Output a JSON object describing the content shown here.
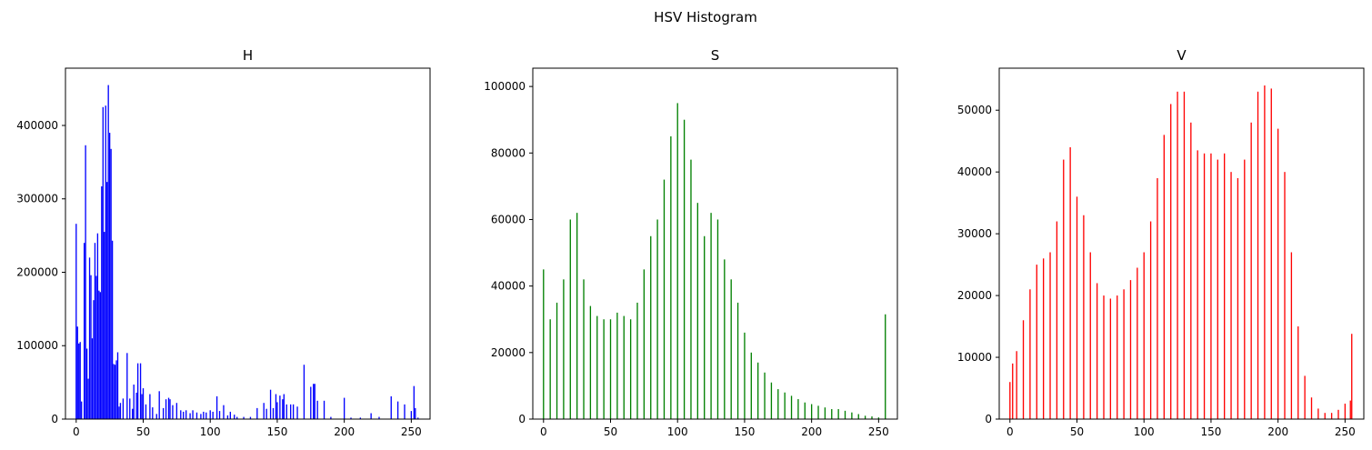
{
  "figure": {
    "title": "HSV Histogram"
  },
  "chart_data": [
    {
      "type": "bar",
      "title": "H",
      "color": "#0000ff",
      "xlim": [
        -8,
        264
      ],
      "ylim": [
        0,
        478000
      ],
      "xticks": [
        0,
        50,
        100,
        150,
        200,
        250
      ],
      "yticks": [
        0,
        100000,
        200000,
        300000,
        400000
      ],
      "x": [
        0,
        1,
        2,
        3,
        4,
        6,
        7,
        8,
        9,
        10,
        11,
        12,
        13,
        14,
        15,
        16,
        17,
        18,
        19,
        20,
        21,
        22,
        23,
        24,
        25,
        26,
        27,
        28,
        29,
        30,
        31,
        32,
        33,
        35,
        38,
        40,
        42,
        43,
        45,
        46,
        48,
        49,
        50,
        52,
        55,
        57,
        60,
        62,
        65,
        67,
        69,
        70,
        72,
        75,
        78,
        80,
        82,
        85,
        87,
        90,
        93,
        95,
        97,
        100,
        102,
        105,
        107,
        110,
        113,
        115,
        118,
        120,
        125,
        130,
        135,
        140,
        142,
        145,
        147,
        149,
        150,
        152,
        154,
        155,
        157,
        160,
        162,
        165,
        170,
        175,
        177,
        178,
        180,
        185,
        190,
        200,
        205,
        212,
        220,
        226,
        235,
        240,
        245,
        250,
        252,
        253,
        255
      ],
      "values": [
        266000,
        126000,
        103000,
        105000,
        24000,
        240000,
        373000,
        96000,
        55000,
        220000,
        196000,
        110000,
        162000,
        240000,
        195000,
        253000,
        175000,
        173000,
        317000,
        425000,
        255000,
        427000,
        323000,
        455000,
        390000,
        368000,
        243000,
        75000,
        74000,
        80000,
        91000,
        17000,
        22000,
        28000,
        90000,
        28000,
        14000,
        47000,
        36000,
        76000,
        76000,
        34000,
        42000,
        20000,
        34000,
        16000,
        7000,
        38000,
        15000,
        27000,
        29000,
        27000,
        19000,
        22000,
        12000,
        10000,
        12000,
        8000,
        12000,
        9000,
        7000,
        10000,
        9000,
        12000,
        10000,
        31000,
        11000,
        19000,
        5000,
        10000,
        6000,
        3000,
        3000,
        3000,
        15000,
        22000,
        14000,
        40000,
        15000,
        34000,
        23000,
        32000,
        27000,
        34000,
        20000,
        20000,
        20000,
        17000,
        74000,
        44000,
        48000,
        48000,
        25000,
        25000,
        3000,
        29000,
        2000,
        2000,
        8000,
        3000,
        31000,
        24000,
        20000,
        11000,
        45000,
        15000,
        2000
      ]
    },
    {
      "type": "bar",
      "title": "S",
      "color": "#008000",
      "xlim": [
        -8,
        264
      ],
      "ylim": [
        0,
        105500
      ],
      "xticks": [
        0,
        50,
        100,
        150,
        200,
        250
      ],
      "yticks": [
        0,
        20000,
        40000,
        60000,
        80000,
        100000
      ],
      "x": [
        0,
        5,
        10,
        15,
        20,
        25,
        30,
        35,
        40,
        45,
        50,
        55,
        60,
        65,
        70,
        75,
        80,
        85,
        90,
        95,
        100,
        105,
        110,
        115,
        120,
        125,
        130,
        135,
        140,
        145,
        150,
        155,
        160,
        165,
        170,
        175,
        180,
        185,
        190,
        195,
        200,
        205,
        210,
        215,
        220,
        225,
        230,
        235,
        240,
        245,
        250,
        255
      ],
      "values": [
        45000,
        30000,
        35000,
        42000,
        60000,
        62000,
        42000,
        34000,
        31000,
        30000,
        30000,
        32000,
        31000,
        30000,
        35000,
        45000,
        55000,
        60000,
        72000,
        85000,
        95000,
        90000,
        78000,
        65000,
        55000,
        62000,
        60000,
        48000,
        42000,
        35000,
        26000,
        20000,
        17000,
        14000,
        11000,
        9000,
        8000,
        7000,
        6000,
        5000,
        4500,
        4000,
        3500,
        3000,
        3000,
        2500,
        2000,
        1500,
        1000,
        800,
        500,
        31500
      ]
    },
    {
      "type": "bar",
      "title": "V",
      "color": "#ff0000",
      "xlim": [
        -8,
        264
      ],
      "ylim": [
        0,
        56800
      ],
      "xticks": [
        0,
        50,
        100,
        150,
        200,
        250
      ],
      "yticks": [
        0,
        10000,
        20000,
        30000,
        40000,
        50000
      ],
      "x": [
        0,
        2,
        5,
        10,
        15,
        20,
        25,
        30,
        35,
        40,
        45,
        50,
        55,
        60,
        65,
        70,
        75,
        80,
        85,
        90,
        95,
        100,
        105,
        110,
        115,
        120,
        125,
        130,
        135,
        140,
        145,
        150,
        155,
        160,
        165,
        170,
        175,
        180,
        185,
        190,
        195,
        200,
        205,
        210,
        215,
        220,
        225,
        230,
        235,
        240,
        245,
        250,
        254,
        255
      ],
      "values": [
        6000,
        9000,
        11000,
        16000,
        21000,
        25000,
        26000,
        27000,
        32000,
        42000,
        44000,
        36000,
        33000,
        27000,
        22000,
        20000,
        19500,
        20000,
        21000,
        22500,
        24500,
        27000,
        32000,
        39000,
        46000,
        51000,
        53000,
        53000,
        48000,
        43500,
        43000,
        43000,
        42000,
        43000,
        40000,
        39000,
        42000,
        48000,
        53000,
        54000,
        53500,
        47000,
        40000,
        27000,
        15000,
        7000,
        3500,
        1700,
        1000,
        1000,
        1500,
        2500,
        3000,
        13800
      ]
    }
  ]
}
